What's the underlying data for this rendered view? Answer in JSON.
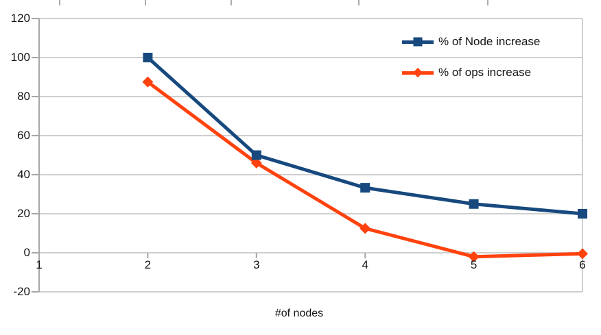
{
  "chart_data": {
    "type": "line",
    "title": "",
    "xlabel": "#of nodes",
    "ylabel": "",
    "x": [
      2,
      3,
      4,
      5,
      6
    ],
    "series": [
      {
        "name": "% of Node increase",
        "color": "#17497E",
        "marker": "square",
        "values": [
          100,
          50,
          33.3,
          25,
          20
        ]
      },
      {
        "name": "% of ops increase",
        "color": "#FF420E",
        "marker": "diamond",
        "values": [
          87.5,
          46,
          12.5,
          -2,
          -0.5
        ]
      }
    ],
    "xticks": [
      1,
      2,
      3,
      4,
      5,
      6
    ],
    "yticks": [
      120,
      100,
      80,
      60,
      40,
      20,
      0,
      -20
    ],
    "xlim": [
      1,
      6
    ],
    "ylim": [
      -20,
      120
    ],
    "grid": "horizontal-only",
    "legend_position": "inside-top-right",
    "colors": {
      "gridline": "#cfcfcf",
      "axis": "#a6a6a6",
      "text": "#141414"
    }
  }
}
